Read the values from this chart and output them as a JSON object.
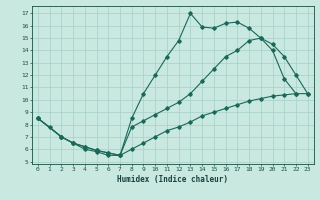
{
  "xlabel": "Humidex (Indice chaleur)",
  "bg_color": "#c8e8e0",
  "grid_color": "#a8cfc8",
  "line_color": "#1a6858",
  "xlim": [
    -0.5,
    23.5
  ],
  "ylim": [
    4.8,
    17.6
  ],
  "xticks": [
    0,
    1,
    2,
    3,
    4,
    5,
    6,
    7,
    8,
    9,
    10,
    11,
    12,
    13,
    14,
    15,
    16,
    17,
    18,
    19,
    20,
    21,
    22,
    23
  ],
  "yticks": [
    5,
    6,
    7,
    8,
    9,
    10,
    11,
    12,
    13,
    14,
    15,
    16,
    17
  ],
  "line1_x": [
    0,
    1,
    2,
    3,
    4,
    5,
    6,
    7,
    8,
    9,
    10,
    11,
    12,
    13,
    14,
    15,
    16,
    17,
    18,
    19,
    20,
    21,
    22
  ],
  "line1_y": [
    8.5,
    7.8,
    7.0,
    6.5,
    6.0,
    5.8,
    5.5,
    5.5,
    8.5,
    10.5,
    12.0,
    13.5,
    14.8,
    17.0,
    15.9,
    15.8,
    16.2,
    16.3,
    15.8,
    15.0,
    14.0,
    11.7,
    10.5
  ],
  "line2_x": [
    0,
    2,
    3,
    4,
    5,
    6,
    7,
    8,
    9,
    10,
    11,
    12,
    13,
    14,
    15,
    16,
    17,
    18,
    19,
    20,
    21,
    22,
    23
  ],
  "line2_y": [
    8.5,
    7.0,
    6.5,
    6.2,
    5.9,
    5.7,
    5.5,
    7.8,
    8.3,
    8.8,
    9.3,
    9.8,
    10.5,
    11.5,
    12.5,
    13.5,
    14.0,
    14.8,
    15.0,
    14.5,
    13.5,
    12.0,
    10.5
  ],
  "line3_x": [
    0,
    2,
    3,
    4,
    5,
    6,
    7,
    8,
    9,
    10,
    11,
    12,
    13,
    14,
    15,
    16,
    17,
    18,
    19,
    20,
    21,
    22,
    23
  ],
  "line3_y": [
    8.5,
    7.0,
    6.5,
    6.2,
    5.9,
    5.7,
    5.5,
    6.0,
    6.5,
    7.0,
    7.5,
    7.8,
    8.2,
    8.7,
    9.0,
    9.3,
    9.6,
    9.9,
    10.1,
    10.3,
    10.4,
    10.5,
    10.5
  ]
}
